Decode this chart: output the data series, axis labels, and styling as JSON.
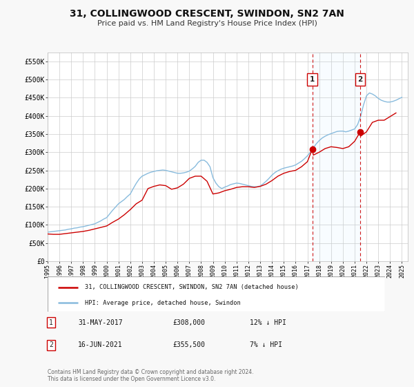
{
  "title": "31, COLLINGWOOD CRESCENT, SWINDON, SN2 7AN",
  "subtitle": "Price paid vs. HM Land Registry's House Price Index (HPI)",
  "ylim": [
    0,
    575000
  ],
  "yticks": [
    0,
    50000,
    100000,
    150000,
    200000,
    250000,
    300000,
    350000,
    400000,
    450000,
    500000,
    550000
  ],
  "ytick_labels": [
    "£0",
    "£50K",
    "£100K",
    "£150K",
    "£200K",
    "£250K",
    "£300K",
    "£350K",
    "£400K",
    "£450K",
    "£500K",
    "£550K"
  ],
  "bg_color": "#f8f8f8",
  "plot_bg_color": "#ffffff",
  "grid_color": "#cccccc",
  "red_color": "#cc0000",
  "blue_color": "#88bbdd",
  "marker1_date": 2017.41,
  "marker1_value": 308000,
  "marker2_date": 2021.46,
  "marker2_value": 355500,
  "vline1_x": 2017.41,
  "vline2_x": 2021.46,
  "legend_label_red": "31, COLLINGWOOD CRESCENT, SWINDON, SN2 7AN (detached house)",
  "legend_label_blue": "HPI: Average price, detached house, Swindon",
  "annotation1_date": "31-MAY-2017",
  "annotation1_price": "£308,000",
  "annotation1_hpi": "12% ↓ HPI",
  "annotation2_date": "16-JUN-2021",
  "annotation2_price": "£355,500",
  "annotation2_hpi": "7% ↓ HPI",
  "footer": "Contains HM Land Registry data © Crown copyright and database right 2024.\nThis data is licensed under the Open Government Licence v3.0.",
  "xmin": 1995,
  "xmax": 2025.5,
  "hpi_x": [
    1995,
    1995.25,
    1995.5,
    1995.75,
    1996,
    1996.25,
    1996.5,
    1996.75,
    1997,
    1997.25,
    1997.5,
    1997.75,
    1998,
    1998.25,
    1998.5,
    1998.75,
    1999,
    1999.25,
    1999.5,
    1999.75,
    2000,
    2000.25,
    2000.5,
    2000.75,
    2001,
    2001.25,
    2001.5,
    2001.75,
    2002,
    2002.25,
    2002.5,
    2002.75,
    2003,
    2003.25,
    2003.5,
    2003.75,
    2004,
    2004.25,
    2004.5,
    2004.75,
    2005,
    2005.25,
    2005.5,
    2005.75,
    2006,
    2006.25,
    2006.5,
    2006.75,
    2007,
    2007.25,
    2007.5,
    2007.75,
    2008,
    2008.25,
    2008.5,
    2008.75,
    2009,
    2009.25,
    2009.5,
    2009.75,
    2010,
    2010.25,
    2010.5,
    2010.75,
    2011,
    2011.25,
    2011.5,
    2011.75,
    2012,
    2012.25,
    2012.5,
    2012.75,
    2013,
    2013.25,
    2013.5,
    2013.75,
    2014,
    2014.25,
    2014.5,
    2014.75,
    2015,
    2015.25,
    2015.5,
    2015.75,
    2016,
    2016.25,
    2016.5,
    2016.75,
    2017,
    2017.25,
    2017.5,
    2017.75,
    2018,
    2018.25,
    2018.5,
    2018.75,
    2019,
    2019.25,
    2019.5,
    2019.75,
    2020,
    2020.25,
    2020.5,
    2020.75,
    2021,
    2021.25,
    2021.5,
    2021.75,
    2022,
    2022.25,
    2022.5,
    2022.75,
    2023,
    2023.25,
    2023.5,
    2023.75,
    2024,
    2024.25,
    2024.5,
    2024.75,
    2025
  ],
  "hpi_y": [
    80000,
    81000,
    82000,
    83000,
    84000,
    85000,
    86000,
    88000,
    89000,
    91000,
    92000,
    94000,
    95000,
    97000,
    99000,
    101000,
    103000,
    107000,
    111000,
    116000,
    120000,
    130000,
    140000,
    149000,
    158000,
    164000,
    170000,
    178000,
    185000,
    200000,
    214000,
    226000,
    234000,
    238000,
    242000,
    245000,
    247000,
    249000,
    250000,
    251000,
    250000,
    248000,
    246000,
    244000,
    242000,
    242000,
    243000,
    245000,
    248000,
    254000,
    261000,
    272000,
    278000,
    278000,
    272000,
    260000,
    230000,
    215000,
    205000,
    200000,
    204000,
    207000,
    211000,
    213000,
    215000,
    214000,
    212000,
    210000,
    208000,
    206000,
    205000,
    205000,
    207000,
    213000,
    220000,
    228000,
    237000,
    244000,
    249000,
    253000,
    256000,
    258000,
    260000,
    262000,
    265000,
    270000,
    275000,
    282000,
    290000,
    300000,
    312000,
    323000,
    332000,
    339000,
    344000,
    348000,
    351000,
    354000,
    357000,
    358000,
    358000,
    356000,
    358000,
    361000,
    364000,
    376000,
    398000,
    430000,
    455000,
    463000,
    460000,
    455000,
    448000,
    443000,
    440000,
    438000,
    438000,
    440000,
    443000,
    447000,
    451000
  ],
  "price_x": [
    1995,
    1995.5,
    1996,
    1996.5,
    1997,
    1997.5,
    1998,
    1998.5,
    1999,
    1999.5,
    2000,
    2000.5,
    2001,
    2001.5,
    2002,
    2002.5,
    2003,
    2003.5,
    2004,
    2004.5,
    2005,
    2005.5,
    2006,
    2006.5,
    2007,
    2007.5,
    2008,
    2008.5,
    2009,
    2009.5,
    2010,
    2010.5,
    2011,
    2011.5,
    2012,
    2012.5,
    2013,
    2013.5,
    2014,
    2014.5,
    2015,
    2015.5,
    2016,
    2016.5,
    2017,
    2017.41,
    2017.5,
    2018,
    2018.5,
    2019,
    2019.5,
    2020,
    2020.5,
    2021,
    2021.46,
    2021.5,
    2022,
    2022.5,
    2023,
    2023.5,
    2024,
    2024.5
  ],
  "price_y": [
    75000,
    74000,
    74000,
    76000,
    78000,
    80000,
    82000,
    85000,
    89000,
    93000,
    97000,
    107000,
    116000,
    128000,
    142000,
    158000,
    168000,
    200000,
    206000,
    210000,
    208000,
    198000,
    202000,
    212000,
    228000,
    234000,
    234000,
    220000,
    185000,
    188000,
    194000,
    198000,
    203000,
    205000,
    205000,
    203000,
    206000,
    212000,
    222000,
    234000,
    242000,
    247000,
    250000,
    260000,
    274000,
    308000,
    292000,
    300000,
    310000,
    315000,
    313000,
    310000,
    315000,
    330000,
    355500,
    344000,
    356000,
    382000,
    388000,
    388000,
    398000,
    408000
  ]
}
